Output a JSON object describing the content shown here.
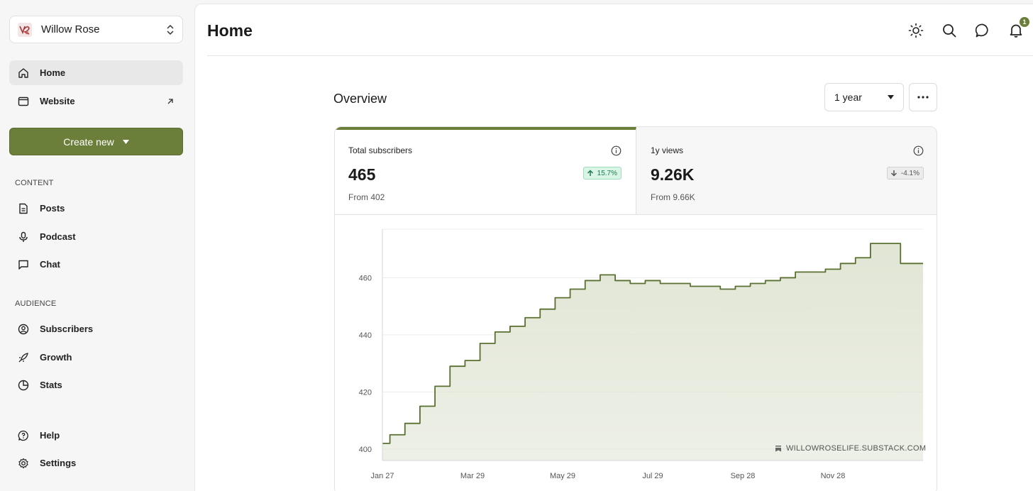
{
  "sidebar": {
    "publication": {
      "name": "Willow Rose"
    },
    "nav": [
      {
        "label": "Home",
        "icon": "home-icon",
        "active": true
      },
      {
        "label": "Website",
        "icon": "browser-icon",
        "active": false
      }
    ],
    "create_label": "Create new",
    "content_label": "CONTENT",
    "content_items": [
      {
        "label": "Posts",
        "icon": "document-icon"
      },
      {
        "label": "Podcast",
        "icon": "microphone-icon"
      },
      {
        "label": "Chat",
        "icon": "chat-icon"
      }
    ],
    "audience_label": "AUDIENCE",
    "audience_items": [
      {
        "label": "Subscribers",
        "icon": "user-circle-icon"
      },
      {
        "label": "Growth",
        "icon": "rocket-icon"
      },
      {
        "label": "Stats",
        "icon": "pie-chart-icon"
      }
    ],
    "footer_items": [
      {
        "label": "Help",
        "icon": "help-icon"
      },
      {
        "label": "Settings",
        "icon": "gear-icon"
      }
    ]
  },
  "header": {
    "title": "Home",
    "notification_count": "1",
    "icons": [
      "sun-icon",
      "search-icon",
      "chat-bubble-icon",
      "bell-icon"
    ]
  },
  "overview": {
    "title": "Overview",
    "range": "1 year",
    "stats": [
      {
        "label": "Total subscribers",
        "value": "465",
        "change": "15.7%",
        "direction": "up",
        "from": "From 402"
      },
      {
        "label": "1y views",
        "value": "9.26K",
        "change": "-4.1%",
        "direction": "down",
        "from": "From 9.66K"
      }
    ],
    "watermark": "WILLOWROSELIFE.SUBSTACK.COM"
  },
  "colors": {
    "accent": "#6b7f3a",
    "chart_line": "#5a7030",
    "chart_fill": "#dfe4d2"
  },
  "chart_data": {
    "type": "area",
    "x": [
      "Jan 27",
      "Feb 6",
      "Feb 16",
      "Feb 26",
      "Mar 8",
      "Mar 18",
      "Mar 29",
      "Apr 8",
      "Apr 18",
      "Apr 28",
      "May 8",
      "May 18",
      "May 29",
      "Jun 8",
      "Jun 18",
      "Jun 28",
      "Jul 8",
      "Jul 18",
      "Jul 29",
      "Aug 8",
      "Aug 18",
      "Aug 28",
      "Sep 8",
      "Sep 18",
      "Sep 28",
      "Oct 8",
      "Oct 18",
      "Oct 28",
      "Nov 8",
      "Nov 18",
      "Nov 28",
      "Dec 8",
      "Dec 18",
      "Dec 28",
      "Jan 7",
      "Jan 17",
      "Jan 24"
    ],
    "values": [
      402,
      405,
      409,
      415,
      422,
      429,
      431,
      437,
      441,
      443,
      446,
      449,
      453,
      456,
      459,
      461,
      459,
      458,
      459,
      458,
      458,
      457,
      457,
      456,
      457,
      458,
      459,
      460,
      462,
      462,
      463,
      465,
      467,
      472,
      472,
      465,
      465
    ],
    "x_ticks": [
      "Jan 27",
      "Mar 29",
      "May 29",
      "Jul 29",
      "Sep 28",
      "Nov 28"
    ],
    "y_ticks": [
      400,
      420,
      440,
      460
    ],
    "ylim": [
      396,
      477
    ],
    "grid": true,
    "title": "",
    "xlabel": "",
    "ylabel": ""
  }
}
